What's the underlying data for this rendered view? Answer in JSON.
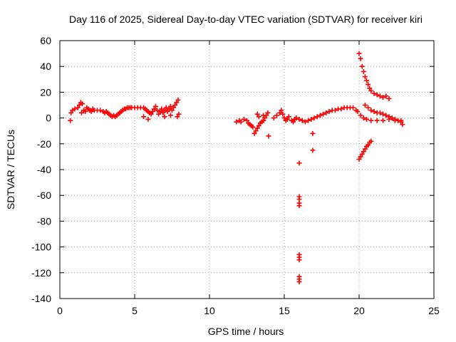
{
  "chart_data": {
    "type": "scatter",
    "title": "Day 116 of 2025, Sidereal Day-to-day VTEC variation (SDTVAR) for receiver kiri",
    "xlabel": "GPS time / hours",
    "ylabel": "SDTVAR / TECUs",
    "xlim": [
      0,
      25
    ],
    "ylim": [
      -140,
      60
    ],
    "xticks": [
      0,
      5,
      10,
      15,
      20,
      25
    ],
    "yticks": [
      -140,
      -120,
      -100,
      -80,
      -60,
      -40,
      -20,
      0,
      20,
      40,
      60
    ],
    "grid": true,
    "marker": "plus",
    "color": "#ff0000",
    "series": [
      {
        "points": [
          [
            0.7,
            -2
          ],
          [
            0.75,
            4
          ],
          [
            0.85,
            6
          ],
          [
            1.0,
            7
          ],
          [
            1.2,
            8
          ],
          [
            1.3,
            10
          ],
          [
            1.4,
            12
          ],
          [
            1.5,
            11
          ],
          [
            1.45,
            4
          ],
          [
            1.6,
            6
          ],
          [
            1.7,
            5
          ],
          [
            1.8,
            8
          ],
          [
            1.9,
            7
          ],
          [
            2.0,
            6
          ],
          [
            2.1,
            5
          ],
          [
            2.2,
            7
          ],
          [
            2.3,
            6
          ],
          [
            2.5,
            6
          ],
          [
            2.7,
            6
          ],
          [
            2.9,
            5
          ],
          [
            3.0,
            4
          ],
          [
            3.1,
            5
          ],
          [
            3.2,
            4
          ],
          [
            3.3,
            3
          ],
          [
            3.4,
            2
          ],
          [
            3.5,
            1
          ],
          [
            3.6,
            2
          ],
          [
            3.7,
            1
          ],
          [
            3.8,
            2
          ],
          [
            3.9,
            3
          ],
          [
            4.0,
            4
          ],
          [
            4.1,
            5
          ],
          [
            4.2,
            6
          ],
          [
            4.3,
            7
          ],
          [
            4.4,
            7
          ],
          [
            4.5,
            8
          ],
          [
            4.6,
            8
          ],
          [
            4.7,
            8
          ],
          [
            4.8,
            8
          ],
          [
            5.0,
            8
          ],
          [
            5.2,
            8
          ],
          [
            5.4,
            8
          ],
          [
            5.6,
            8
          ],
          [
            5.7,
            7
          ],
          [
            5.8,
            6
          ],
          [
            5.9,
            5
          ],
          [
            6.0,
            4
          ],
          [
            5.6,
            1
          ],
          [
            5.9,
            -1
          ],
          [
            6.1,
            3
          ],
          [
            6.2,
            5
          ],
          [
            6.3,
            7
          ],
          [
            6.4,
            9
          ],
          [
            6.5,
            6
          ],
          [
            6.6,
            3
          ],
          [
            6.7,
            5
          ],
          [
            6.8,
            7
          ],
          [
            6.9,
            4
          ],
          [
            7.0,
            6
          ],
          [
            7.1,
            8
          ],
          [
            7.2,
            5
          ],
          [
            7.3,
            7
          ],
          [
            7.4,
            9
          ],
          [
            7.5,
            6
          ],
          [
            7.6,
            8
          ],
          [
            7.7,
            10
          ],
          [
            7.8,
            12
          ],
          [
            7.9,
            14
          ],
          [
            7.95,
            3
          ],
          [
            7.85,
            1
          ],
          [
            7.4,
            2
          ],
          [
            7.0,
            1
          ],
          [
            11.8,
            -3
          ],
          [
            12.0,
            -2
          ],
          [
            12.1,
            -3
          ],
          [
            12.3,
            -1
          ],
          [
            12.5,
            -2
          ],
          [
            12.6,
            -4
          ],
          [
            12.7,
            -5
          ],
          [
            12.8,
            -6
          ],
          [
            12.9,
            -7
          ],
          [
            13.0,
            -12
          ],
          [
            13.1,
            -10
          ],
          [
            13.2,
            -8
          ],
          [
            13.3,
            -6
          ],
          [
            13.4,
            -4
          ],
          [
            13.5,
            -3
          ],
          [
            13.6,
            -2
          ],
          [
            13.7,
            0
          ],
          [
            13.8,
            2
          ],
          [
            13.9,
            4
          ],
          [
            13.2,
            3
          ],
          [
            13.3,
            1
          ],
          [
            13.6,
            2
          ],
          [
            13.95,
            -14
          ],
          [
            14.3,
            0
          ],
          [
            14.5,
            2
          ],
          [
            14.7,
            4
          ],
          [
            14.8,
            6
          ],
          [
            14.9,
            3
          ],
          [
            15.0,
            0
          ],
          [
            15.1,
            -2
          ],
          [
            15.2,
            -1
          ],
          [
            15.3,
            1
          ],
          [
            15.5,
            -2
          ],
          [
            15.6,
            -3
          ],
          [
            15.7,
            -1
          ],
          [
            15.8,
            0
          ],
          [
            16.0,
            -1
          ],
          [
            16.2,
            -2
          ],
          [
            16.4,
            -3
          ],
          [
            16.6,
            -2
          ],
          [
            16.8,
            -1
          ],
          [
            17.0,
            0
          ],
          [
            17.2,
            1
          ],
          [
            17.4,
            2
          ],
          [
            17.6,
            3
          ],
          [
            17.8,
            4
          ],
          [
            18.0,
            5
          ],
          [
            18.2,
            6
          ],
          [
            18.4,
            6
          ],
          [
            18.6,
            7
          ],
          [
            18.8,
            7
          ],
          [
            19.0,
            8
          ],
          [
            19.2,
            8
          ],
          [
            19.4,
            8
          ],
          [
            19.6,
            8
          ],
          [
            19.8,
            6
          ],
          [
            19.9,
            5
          ],
          [
            16.0,
            -35
          ],
          [
            16.0,
            -61
          ],
          [
            16.0,
            -63
          ],
          [
            16.0,
            -66
          ],
          [
            16.0,
            -68
          ],
          [
            16.0,
            -106
          ],
          [
            16.0,
            -108
          ],
          [
            16.0,
            -110
          ],
          [
            16.0,
            -123
          ],
          [
            16.0,
            -125
          ],
          [
            16.0,
            -127
          ],
          [
            16.9,
            -12
          ],
          [
            16.9,
            -25
          ],
          [
            20.0,
            50
          ],
          [
            20.1,
            46
          ],
          [
            20.2,
            40
          ],
          [
            20.3,
            36
          ],
          [
            20.4,
            32
          ],
          [
            20.5,
            29
          ],
          [
            20.6,
            26
          ],
          [
            20.7,
            23
          ],
          [
            20.8,
            21
          ],
          [
            21.0,
            19
          ],
          [
            21.2,
            18
          ],
          [
            21.4,
            17
          ],
          [
            21.6,
            16
          ],
          [
            21.8,
            17
          ],
          [
            22.0,
            15
          ],
          [
            20.4,
            10
          ],
          [
            20.6,
            8
          ],
          [
            20.8,
            6
          ],
          [
            21.0,
            5
          ],
          [
            21.2,
            4
          ],
          [
            21.4,
            4
          ],
          [
            21.6,
            3
          ],
          [
            21.8,
            2
          ],
          [
            22.0,
            1
          ],
          [
            22.2,
            0
          ],
          [
            22.4,
            -1
          ],
          [
            22.6,
            -2
          ],
          [
            22.8,
            -3
          ],
          [
            22.9,
            -5
          ],
          [
            20.1,
            2
          ],
          [
            20.3,
            0
          ],
          [
            20.5,
            -1
          ],
          [
            20.8,
            -2
          ],
          [
            21.2,
            -2
          ],
          [
            21.6,
            -2
          ],
          [
            22.0,
            -1
          ],
          [
            22.4,
            -2
          ],
          [
            22.8,
            -2
          ],
          [
            20.0,
            -32
          ],
          [
            20.1,
            -30
          ],
          [
            20.2,
            -28
          ],
          [
            20.3,
            -26
          ],
          [
            20.4,
            -24
          ],
          [
            20.5,
            -22
          ],
          [
            20.6,
            -21
          ],
          [
            20.7,
            -19
          ],
          [
            20.8,
            -18
          ]
        ]
      }
    ]
  }
}
